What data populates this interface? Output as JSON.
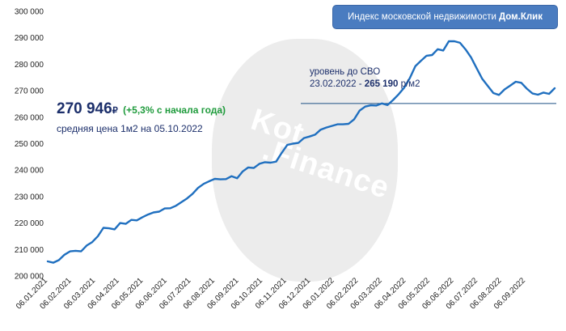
{
  "title": {
    "text": "Индекс московской недвижимости",
    "brand": "Дом.Клик"
  },
  "watermark": {
    "line1": "Kot",
    "line2": ".Finance"
  },
  "headline": {
    "price": "270 946",
    "currency": "₽",
    "change": "(+5,3% с начала года)",
    "caption": "средняя цена 1м2 на 05.10.2022"
  },
  "svo_annotation": {
    "line1": "уровень до СВО",
    "date": "23.02.2022",
    "separator": " - ",
    "value_bold": "265 190",
    "unit": "р/м2",
    "value": 265190
  },
  "colors": {
    "line": "#1f6fbf",
    "text": "#1c2f6b",
    "change": "#1f9b3c",
    "title_bg": "#4a7cc0"
  },
  "chart_data": {
    "type": "line",
    "title": "Индекс московской недвижимости Дом.Клик",
    "xlabel": "",
    "ylabel": "",
    "ylim": [
      200000,
      300000
    ],
    "yticks": [
      200000,
      210000,
      220000,
      230000,
      240000,
      250000,
      260000,
      270000,
      280000,
      290000,
      300000
    ],
    "ytick_labels": [
      "200 000",
      "210 000",
      "220 000",
      "230 000",
      "240 000",
      "250 000",
      "260 000",
      "270 000",
      "280 000",
      "290 000",
      "300 000"
    ],
    "xtick_labels": [
      "06.01.2021",
      "06.02.2021",
      "06.03.2021",
      "06.04.2021",
      "06.05.2021",
      "06.06.2021",
      "06.07.2021",
      "06.08.2021",
      "06.09.2021",
      "06.10.2021",
      "06.11.2021",
      "06.12.2021",
      "06.01.2022",
      "06.02.2022",
      "06.03.2022",
      "06.04.2022",
      "06.05.2022",
      "06.06.2022",
      "06.07.2022",
      "06.08.2022",
      "06.09.2022"
    ],
    "grid": false,
    "reference_line": {
      "y": 265190,
      "label": "уровень до СВО"
    },
    "series": [
      {
        "weeks": [
          0,
          1,
          2,
          3,
          4,
          5,
          6,
          7,
          8,
          9,
          10,
          11,
          12,
          13,
          14,
          15,
          16,
          17,
          18,
          19,
          20,
          21,
          22,
          23,
          24,
          25,
          26,
          27,
          28,
          29,
          30,
          31,
          32,
          33,
          34,
          35,
          36,
          37,
          38,
          39,
          40,
          41,
          42,
          43,
          44,
          45,
          46,
          47,
          48,
          49,
          50,
          51,
          52,
          53,
          54,
          55,
          56,
          57,
          58,
          59,
          60,
          61,
          62,
          63,
          64,
          65,
          66,
          67,
          68,
          69,
          70,
          71,
          72,
          73,
          74,
          75,
          76,
          77,
          78,
          79,
          80,
          81,
          82,
          83,
          84,
          85,
          86,
          87,
          88,
          89,
          90,
          91
        ],
        "values": [
          205500,
          205000,
          206000,
          208000,
          209300,
          209500,
          209300,
          211500,
          212800,
          215000,
          218200,
          218000,
          217600,
          220000,
          219700,
          221200,
          221000,
          222200,
          223200,
          224000,
          224300,
          225500,
          225600,
          226500,
          227900,
          229300,
          231000,
          233300,
          234800,
          235800,
          236700,
          236500,
          236600,
          237700,
          236900,
          239500,
          241000,
          240800,
          242400,
          243000,
          242800,
          243200,
          246500,
          249500,
          250000,
          250300,
          252100,
          252700,
          253400,
          255300,
          256100,
          256700,
          257300,
          257300,
          257500,
          259200,
          262500,
          264000,
          264500,
          264400,
          265190,
          264600,
          266500,
          268700,
          271200,
          274800,
          279300,
          281300,
          283200,
          283500,
          285700,
          285200,
          288700,
          288700,
          288100,
          285600,
          282600,
          278500,
          274500,
          271800,
          269100,
          268400,
          270500,
          271900,
          273400,
          273000,
          270800,
          269000,
          268500,
          269300,
          268800,
          270946
        ]
      }
    ]
  }
}
